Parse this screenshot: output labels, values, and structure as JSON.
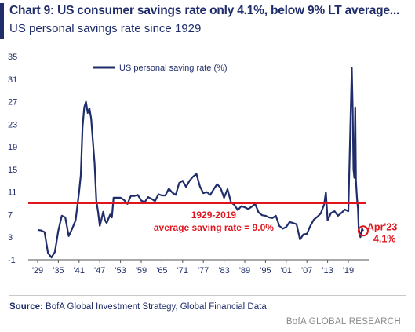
{
  "header": {
    "title": "Chart 9: US consumer savings rate only 4.1%, below 9% LT average...",
    "subtitle": "US personal savings rate since 1929"
  },
  "footer": {
    "source_label": "Source:",
    "source_text": "BofA Global Investment Strategy, Global Financial Data",
    "brand": "BofA GLOBAL RESEARCH"
  },
  "colors": {
    "series": "#1f2d6b",
    "average_line": "#e0161e",
    "text": "#1f2d6b",
    "brand": "#8a8a8a"
  },
  "chart_data": {
    "type": "line",
    "title": "Chart 9: US consumer savings rate only 4.1%, below 9% LT average...",
    "subtitle": "US personal savings rate since 1929",
    "xlabel": "",
    "ylabel": "",
    "ylim": [
      -1,
      35
    ],
    "xlim": [
      1929,
      2024
    ],
    "yticks": [
      -1,
      3,
      7,
      11,
      15,
      19,
      23,
      27,
      31,
      35
    ],
    "xtick_labels": [
      "'29",
      "'35",
      "'41",
      "'47",
      "'53",
      "'59",
      "'65",
      "'71",
      "'77",
      "'83",
      "'89",
      "'95",
      "'01",
      "'07",
      "'13",
      "'19"
    ],
    "xtick_years": [
      1929,
      1935,
      1941,
      1947,
      1953,
      1959,
      1965,
      1971,
      1977,
      1983,
      1989,
      1995,
      2001,
      2007,
      2013,
      2019
    ],
    "grid": false,
    "legend": {
      "position": "top-left",
      "entries": [
        "US personal saving rate (%)"
      ]
    },
    "series": [
      {
        "name": "US personal saving rate (%)",
        "x": [
          1929,
          1930,
          1931,
          1932,
          1933,
          1934,
          1935,
          1936,
          1937,
          1938,
          1939,
          1940,
          1941,
          1941.5,
          1942,
          1942.5,
          1943,
          1943.5,
          1944,
          1944.5,
          1945,
          1945.5,
          1946,
          1946.5,
          1947,
          1947.5,
          1948,
          1948.5,
          1949,
          1950,
          1950.5,
          1951,
          1952,
          1953,
          1954,
          1955,
          1956,
          1957,
          1958,
          1959,
          1960,
          1961,
          1962,
          1963,
          1964,
          1965,
          1966,
          1967,
          1968,
          1969,
          1970,
          1971,
          1972,
          1973,
          1974,
          1975,
          1976,
          1977,
          1978,
          1979,
          1980,
          1981,
          1982,
          1983,
          1984,
          1985,
          1986,
          1987,
          1988,
          1989,
          1990,
          1991,
          1992,
          1993,
          1994,
          1995,
          1996,
          1997,
          1998,
          1999,
          2000,
          2001,
          2002,
          2003,
          2004,
          2005,
          2006,
          2007,
          2008,
          2009,
          2010,
          2011,
          2012,
          2012.5,
          2013,
          2014,
          2015,
          2016,
          2017,
          2018,
          2019,
          2020,
          2020.25,
          2020.5,
          2020.75,
          2021,
          2021.2,
          2021.5,
          2021.8,
          2022,
          2022.5,
          2023,
          2023.3
        ],
        "values": [
          4.3,
          4.2,
          3.9,
          0.2,
          -0.6,
          0.4,
          4.2,
          6.8,
          6.5,
          3.2,
          4.5,
          6.0,
          11.0,
          14.0,
          22.5,
          26.0,
          27.0,
          25.0,
          25.8,
          24.0,
          20.0,
          16.0,
          9.5,
          7.5,
          5.0,
          6.2,
          7.5,
          6.0,
          5.5,
          7.0,
          6.5,
          10.0,
          10.0,
          10.0,
          9.6,
          8.9,
          10.3,
          10.3,
          10.5,
          9.5,
          9.2,
          10.1,
          9.8,
          9.4,
          10.6,
          10.4,
          10.4,
          11.6,
          10.9,
          10.5,
          12.6,
          13.0,
          11.9,
          13.0,
          13.7,
          14.2,
          12.0,
          10.8,
          11.0,
          10.5,
          11.5,
          12.4,
          11.7,
          10.0,
          11.5,
          9.2,
          8.7,
          7.8,
          8.5,
          8.3,
          8.0,
          8.4,
          8.9,
          7.4,
          6.9,
          6.8,
          6.5,
          6.4,
          6.8,
          5.0,
          4.5,
          4.8,
          5.7,
          5.5,
          5.3,
          2.6,
          3.5,
          3.6,
          5.0,
          6.1,
          6.6,
          7.2,
          8.8,
          11.0,
          6.0,
          7.3,
          7.6,
          6.8,
          7.3,
          7.9,
          7.6,
          33.0,
          26.0,
          15.0,
          13.5,
          26.0,
          13.0,
          10.0,
          8.0,
          4.5,
          3.0,
          4.5,
          4.1
        ]
      }
    ],
    "reference_line": {
      "value": 9.0,
      "label_line1": "1929-2019",
      "label_line2": "average saving rate = 9.0%"
    },
    "annotation": {
      "x": 2023.3,
      "y": 4.1,
      "label_line1": "Apr'23",
      "label_line2": "4.1%"
    }
  }
}
